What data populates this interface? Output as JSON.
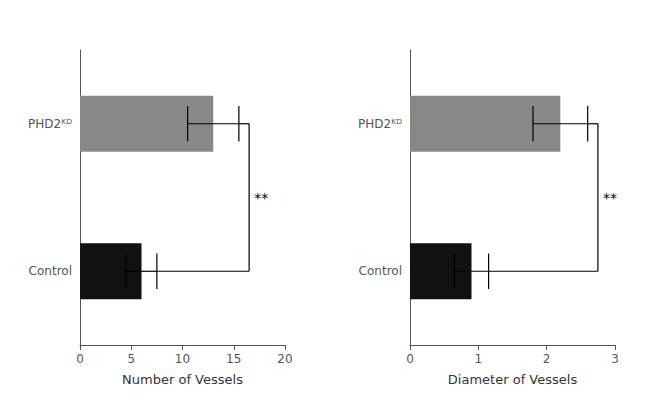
{
  "chart_data": [
    {
      "type": "bar",
      "orientation": "horizontal",
      "xlabel": "Number of Vessels",
      "categories": [
        "PHD2ᴷᴰ",
        "Control"
      ],
      "values": [
        13.0,
        6.0
      ],
      "errors": [
        2.5,
        1.5
      ],
      "colors": [
        "#888888",
        "#111111"
      ],
      "xlim": [
        0,
        20
      ],
      "xticks": [
        0,
        5,
        10,
        15,
        20
      ],
      "annotations": [
        "**"
      ],
      "grid": false
    },
    {
      "type": "bar",
      "orientation": "horizontal",
      "xlabel": "Diameter of Vessels",
      "categories": [
        "PHD2ᴷᴰ",
        "Control"
      ],
      "values": [
        2.2,
        0.9
      ],
      "errors": [
        0.4,
        0.25
      ],
      "colors": [
        "#888888",
        "#111111"
      ],
      "xlim": [
        0,
        3
      ],
      "xticks": [
        0,
        1,
        2,
        3
      ],
      "annotations": [
        "**"
      ],
      "grid": false
    }
  ]
}
